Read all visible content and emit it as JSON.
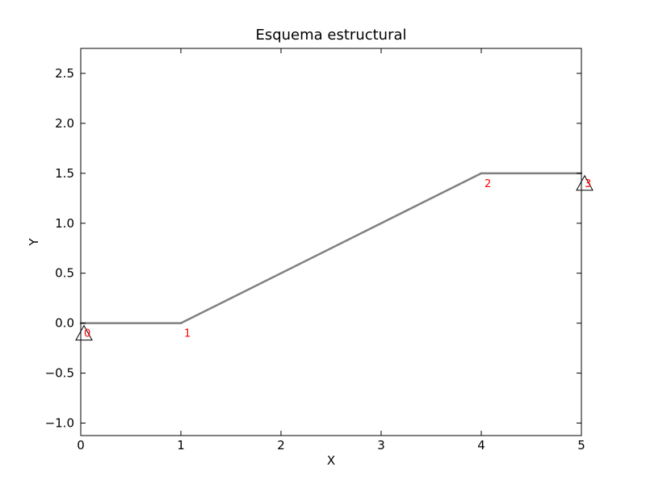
{
  "title": "Esquema estructural",
  "xlabel": "X",
  "ylabel": "Y",
  "x_axis": {
    "range": [
      0,
      5
    ],
    "ticks": [
      0,
      1,
      2,
      3,
      4,
      5
    ],
    "tick_labels": [
      "0",
      "1",
      "2",
      "3",
      "4",
      "5"
    ]
  },
  "y_axis": {
    "range": [
      -1.125,
      2.75
    ],
    "ticks": [
      -1.0,
      -0.5,
      0.0,
      0.5,
      1.0,
      1.5,
      2.0,
      2.5
    ],
    "tick_labels": [
      "−1.0",
      "−0.5",
      "0.0",
      "0.5",
      "1.0",
      "1.5",
      "2.0",
      "2.5"
    ]
  },
  "grid": false,
  "colors": {
    "member": "#808080",
    "node_label": "#ff0000",
    "support": "#000000",
    "frame": "#000000"
  },
  "nodes": [
    {
      "id": "0",
      "x": 0,
      "y": 0,
      "support": "pinned"
    },
    {
      "id": "1",
      "x": 1,
      "y": 0,
      "support": "none"
    },
    {
      "id": "2",
      "x": 4,
      "y": 1.5,
      "support": "none"
    },
    {
      "id": "3",
      "x": 5,
      "y": 1.5,
      "support": "pinned"
    }
  ],
  "members": [
    {
      "from": "0",
      "to": "1"
    },
    {
      "from": "1",
      "to": "2"
    },
    {
      "from": "2",
      "to": "3"
    }
  ]
}
